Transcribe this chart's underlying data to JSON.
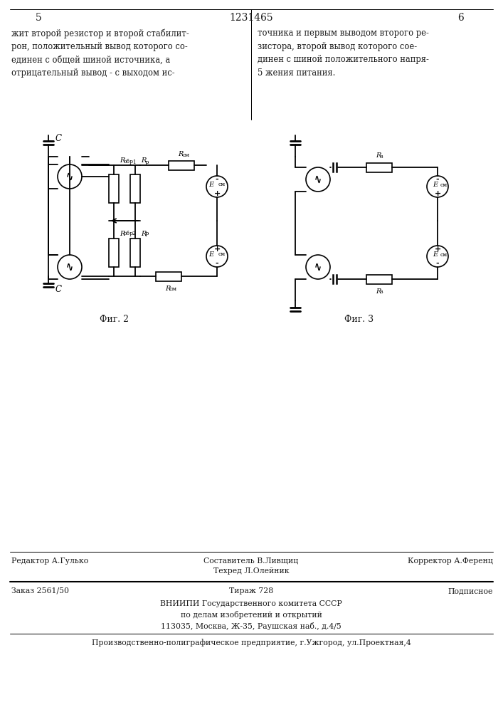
{
  "page_number_left": "5",
  "page_number_right": "6",
  "patent_number": "1231465",
  "text_left": "жит второй резистор и второй стабилит-\nрон, положительный вывод которого со-\nединен с общей шиной источника, а\nотрицательный вывод - с выходом ис-",
  "text_right": "точника и первым выводом второго ре-\nзистора, второй вывод которого сое-\nдинен с шиной положительного напря-\n5 жения питания.",
  "fig2_label": "Фиг. 2",
  "fig3_label": "Фиг. 3",
  "footer_line1_left": "Редактор А.Гулько",
  "footer_line1_center": "Составитель В.Ливщиц\nТехред Л.Олейник",
  "footer_line1_right": "Корректор А.Ференц",
  "footer_line2_left": "Заказ 2561/50",
  "footer_line2_center": "Тираж 728",
  "footer_line2_right": "Подписное",
  "footer_org": "ВНИИПИ Государственного комитета СССР\nпо делам изобретений и открытий\n113035, Москва, Ж-35, Раушская наб., д.4/5",
  "footer_company": "Производственно-полиграфическое предприятие, г.Ужгород, ул.Проектная,4",
  "bg_color": "#ffffff",
  "text_color": "#1a1a1a",
  "line_color": "#000000"
}
